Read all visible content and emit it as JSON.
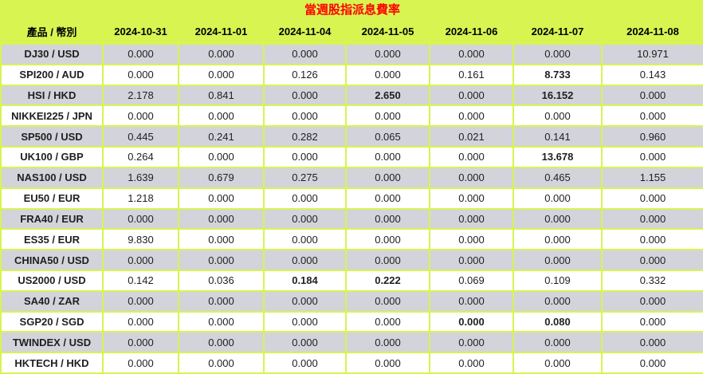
{
  "colors": {
    "accent_limegreen": "#d7f451",
    "row_gray": "#d3d3db",
    "row_white": "#ffffff",
    "title_red": "#ff0000",
    "text_black": "#1f1f1f"
  },
  "chart_data": {
    "type": "table",
    "title": "當週股指派息費率",
    "product_header": "產品 / 幣別",
    "date_columns": [
      "2024-10-31",
      "2024-11-01",
      "2024-11-04",
      "2024-11-05",
      "2024-11-06",
      "2024-11-07",
      "2024-11-08"
    ],
    "rows": [
      {
        "product": "DJ30 / USD",
        "values": [
          "0.000",
          "0.000",
          "0.000",
          "0.000",
          "0.000",
          "0.000",
          "10.971"
        ],
        "bold": [
          false,
          false,
          false,
          false,
          false,
          false,
          false
        ]
      },
      {
        "product": "SPI200 / AUD",
        "values": [
          "0.000",
          "0.000",
          "0.126",
          "0.000",
          "0.161",
          "8.733",
          "0.143"
        ],
        "bold": [
          false,
          false,
          false,
          false,
          false,
          true,
          false
        ]
      },
      {
        "product": "HSI / HKD",
        "values": [
          "2.178",
          "0.841",
          "0.000",
          "2.650",
          "0.000",
          "16.152",
          "0.000"
        ],
        "bold": [
          false,
          false,
          false,
          true,
          false,
          true,
          false
        ]
      },
      {
        "product": "NIKKEI225 / JPN",
        "values": [
          "0.000",
          "0.000",
          "0.000",
          "0.000",
          "0.000",
          "0.000",
          "0.000"
        ],
        "bold": [
          false,
          false,
          false,
          false,
          false,
          false,
          false
        ]
      },
      {
        "product": "SP500 / USD",
        "values": [
          "0.445",
          "0.241",
          "0.282",
          "0.065",
          "0.021",
          "0.141",
          "0.960"
        ],
        "bold": [
          false,
          false,
          false,
          false,
          false,
          false,
          false
        ]
      },
      {
        "product": "UK100 / GBP",
        "values": [
          "0.264",
          "0.000",
          "0.000",
          "0.000",
          "0.000",
          "13.678",
          "0.000"
        ],
        "bold": [
          false,
          false,
          false,
          false,
          false,
          true,
          false
        ]
      },
      {
        "product": "NAS100 / USD",
        "values": [
          "1.639",
          "0.679",
          "0.275",
          "0.000",
          "0.000",
          "0.465",
          "1.155"
        ],
        "bold": [
          false,
          false,
          false,
          false,
          false,
          false,
          false
        ]
      },
      {
        "product": "EU50 / EUR",
        "values": [
          "1.218",
          "0.000",
          "0.000",
          "0.000",
          "0.000",
          "0.000",
          "0.000"
        ],
        "bold": [
          false,
          false,
          false,
          false,
          false,
          false,
          false
        ]
      },
      {
        "product": "FRA40 / EUR",
        "values": [
          "0.000",
          "0.000",
          "0.000",
          "0.000",
          "0.000",
          "0.000",
          "0.000"
        ],
        "bold": [
          false,
          false,
          false,
          false,
          false,
          false,
          false
        ]
      },
      {
        "product": "ES35 / EUR",
        "values": [
          "9.830",
          "0.000",
          "0.000",
          "0.000",
          "0.000",
          "0.000",
          "0.000"
        ],
        "bold": [
          false,
          false,
          false,
          false,
          false,
          false,
          false
        ]
      },
      {
        "product": "CHINA50 / USD",
        "values": [
          "0.000",
          "0.000",
          "0.000",
          "0.000",
          "0.000",
          "0.000",
          "0.000"
        ],
        "bold": [
          false,
          false,
          false,
          false,
          false,
          false,
          false
        ]
      },
      {
        "product": "US2000 / USD",
        "values": [
          "0.142",
          "0.036",
          "0.184",
          "0.222",
          "0.069",
          "0.109",
          "0.332"
        ],
        "bold": [
          false,
          false,
          true,
          true,
          false,
          false,
          false
        ]
      },
      {
        "product": "SA40 / ZAR",
        "values": [
          "0.000",
          "0.000",
          "0.000",
          "0.000",
          "0.000",
          "0.000",
          "0.000"
        ],
        "bold": [
          false,
          false,
          false,
          false,
          false,
          false,
          false
        ]
      },
      {
        "product": "SGP20 / SGD",
        "values": [
          "0.000",
          "0.000",
          "0.000",
          "0.000",
          "0.000",
          "0.080",
          "0.000"
        ],
        "bold": [
          false,
          false,
          false,
          false,
          true,
          true,
          false
        ]
      },
      {
        "product": "TWINDEX / USD",
        "values": [
          "0.000",
          "0.000",
          "0.000",
          "0.000",
          "0.000",
          "0.000",
          "0.000"
        ],
        "bold": [
          false,
          false,
          false,
          false,
          false,
          false,
          false
        ]
      },
      {
        "product": "HKTECH / HKD",
        "values": [
          "0.000",
          "0.000",
          "0.000",
          "0.000",
          "0.000",
          "0.000",
          "0.000"
        ],
        "bold": [
          false,
          false,
          false,
          false,
          false,
          false,
          false
        ]
      }
    ]
  }
}
